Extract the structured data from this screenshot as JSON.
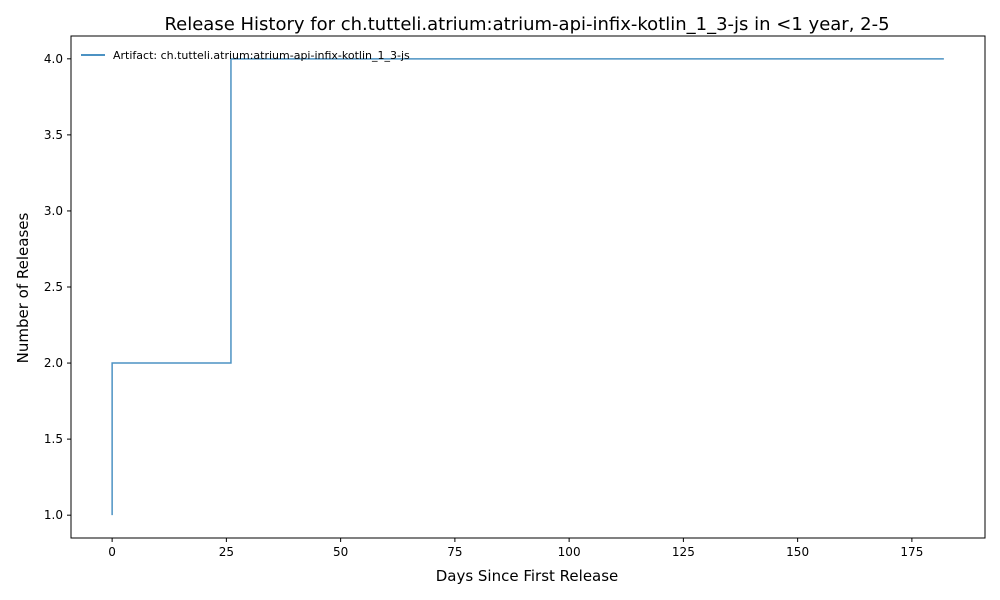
{
  "chart_data": {
    "type": "line",
    "step": "post",
    "title": "Release History for ch.tutteli.atrium:atrium-api-infix-kotlin_1_3-js in <1 year, 2-5",
    "xlabel": "Days Since First Release",
    "ylabel": "Number of Releases",
    "xlim": [
      -9,
      191
    ],
    "ylim": [
      0.85,
      4.15
    ],
    "xticks": [
      0,
      25,
      50,
      75,
      100,
      125,
      150,
      175
    ],
    "yticks": [
      1.0,
      1.5,
      2.0,
      2.5,
      3.0,
      3.5,
      4.0
    ],
    "xtick_labels": [
      "0",
      "25",
      "50",
      "75",
      "100",
      "125",
      "150",
      "175"
    ],
    "ytick_labels": [
      "1.0",
      "1.5",
      "2.0",
      "2.5",
      "3.0",
      "3.5",
      "4.0"
    ],
    "grid": false,
    "legend_placement": "top-left",
    "series": [
      {
        "name": "Artifact: ch.tutteli.atrium:atrium-api-infix-kotlin_1_3-js",
        "color": "#1f77b4",
        "x": [
          0,
          0,
          26,
          26,
          182
        ],
        "y": [
          1,
          2,
          2,
          4,
          4
        ]
      }
    ]
  }
}
